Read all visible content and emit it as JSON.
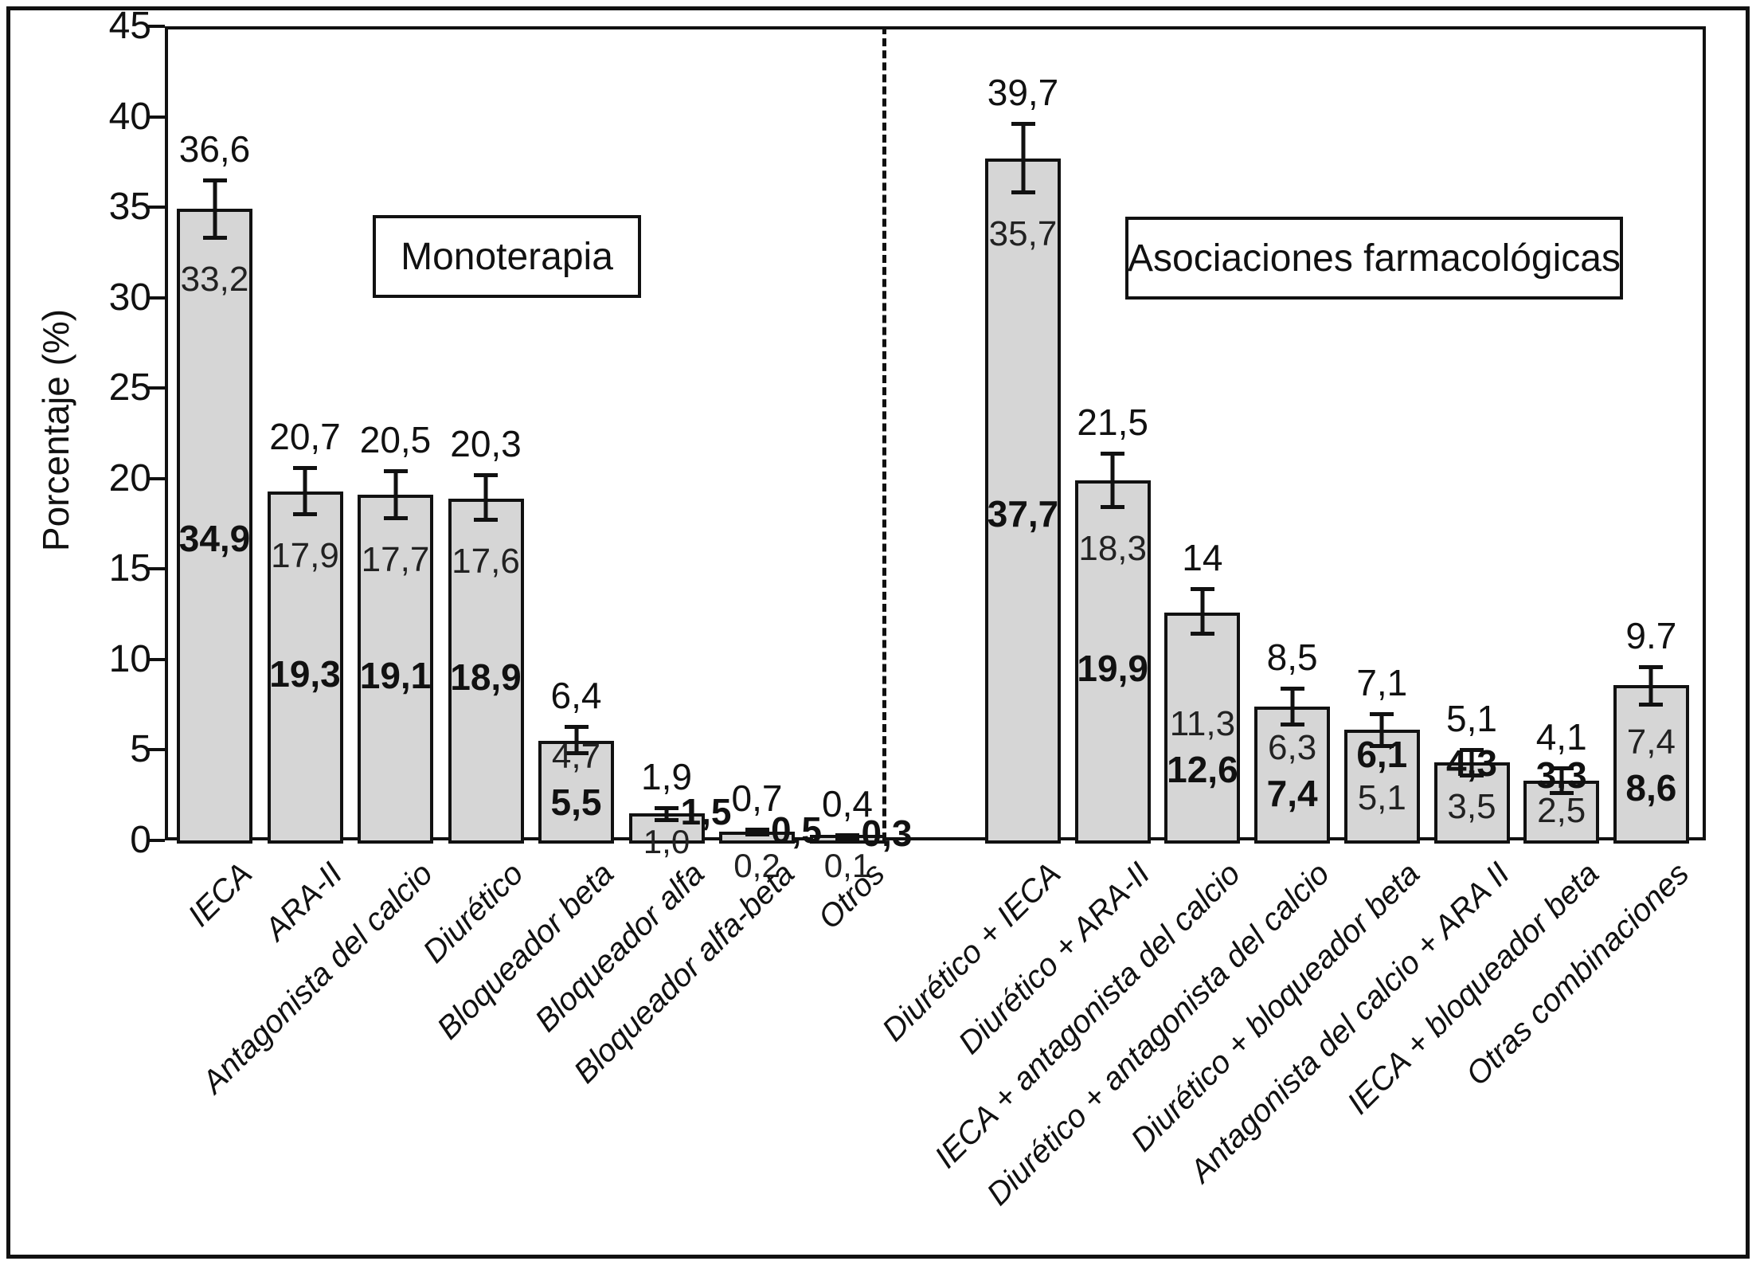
{
  "chart_data": {
    "type": "bar",
    "title": "",
    "ylabel": "Porcentaje (%)",
    "ylim": [
      0,
      45
    ],
    "yticks": [
      0,
      5,
      10,
      15,
      20,
      25,
      30,
      35,
      40,
      45
    ],
    "grid": false,
    "legend_position": "none",
    "error_bars": "whiskers with caps (confidence interval)",
    "label_note": "top number = upper CI limit, light number = lower CI limit, bold number = point estimate",
    "groups": [
      {
        "label": "Monoterapia",
        "bars": [
          {
            "category": "IECA",
            "value": 34.9,
            "ci_low": 33.2,
            "ci_high": 36.6,
            "labels": {
              "top": "36,6",
              "inside": [
                {
                  "text": "33,2",
                  "bold": false
                },
                {
                  "text": "34,9",
                  "bold": true
                }
              ],
              "beside": null,
              "below": null
            }
          },
          {
            "category": "ARA-II",
            "value": 19.3,
            "ci_low": 17.9,
            "ci_high": 20.7,
            "labels": {
              "top": "20,7",
              "inside": [
                {
                  "text": "17,9",
                  "bold": false
                },
                {
                  "text": "19,3",
                  "bold": true
                }
              ],
              "beside": null,
              "below": null
            }
          },
          {
            "category": "Antagonista del calcio",
            "value": 19.1,
            "ci_low": 17.7,
            "ci_high": 20.5,
            "labels": {
              "top": "20,5",
              "inside": [
                {
                  "text": "17,7",
                  "bold": false
                },
                {
                  "text": "19,1",
                  "bold": true
                }
              ],
              "beside": null,
              "below": null
            }
          },
          {
            "category": "Diurético",
            "value": 18.9,
            "ci_low": 17.6,
            "ci_high": 20.3,
            "labels": {
              "top": "20,3",
              "inside": [
                {
                  "text": "17,6",
                  "bold": false
                },
                {
                  "text": "18,9",
                  "bold": true
                }
              ],
              "beside": null,
              "below": null
            }
          },
          {
            "category": "Bloqueador beta",
            "value": 5.5,
            "ci_low": 4.7,
            "ci_high": 6.4,
            "labels": {
              "top": "6,4",
              "inside": [
                {
                  "text": "4,7",
                  "bold": false
                },
                {
                  "text": "5,5",
                  "bold": true
                }
              ],
              "beside": null,
              "below": null
            }
          },
          {
            "category": "Bloqueador alfa",
            "value": 1.5,
            "ci_low": 1.0,
            "ci_high": 1.9,
            "labels": {
              "top": "1,9",
              "inside": [],
              "beside": "1,5",
              "below": "1,0"
            }
          },
          {
            "category": "Bloqueador alfa-beta",
            "value": 0.5,
            "ci_low": 0.2,
            "ci_high": 0.7,
            "labels": {
              "top": "0,7",
              "inside": [],
              "beside": "0,5",
              "below": "0,2"
            }
          },
          {
            "category": "Otros",
            "value": 0.3,
            "ci_low": 0.1,
            "ci_high": 0.4,
            "labels": {
              "top": "0,4",
              "inside": [],
              "beside": "0,3",
              "below": "0,1"
            }
          }
        ]
      },
      {
        "label": "Asociaciones farmacológicas",
        "bars": [
          {
            "category": "Diurético + IECA",
            "value": 37.7,
            "ci_low": 35.7,
            "ci_high": 39.7,
            "labels": {
              "top": "39,7",
              "inside": [
                {
                  "text": "35,7",
                  "bold": false
                },
                {
                  "text": "37,7",
                  "bold": true
                }
              ],
              "beside": null,
              "below": null
            }
          },
          {
            "category": "Diurético + ARA-II",
            "value": 19.9,
            "ci_low": 18.3,
            "ci_high": 21.5,
            "labels": {
              "top": "21,5",
              "inside": [
                {
                  "text": "18,3",
                  "bold": false
                },
                {
                  "text": "19,9",
                  "bold": true
                }
              ],
              "beside": null,
              "below": null
            }
          },
          {
            "category": "IECA + antagonista del calcio",
            "value": 12.6,
            "ci_low": 11.3,
            "ci_high": 14,
            "labels": {
              "top": "14",
              "inside": [
                {
                  "text": "11,3",
                  "bold": false
                },
                {
                  "text": "12,6",
                  "bold": true
                }
              ],
              "beside": null,
              "below": null
            }
          },
          {
            "category": "Diurético + antagonista del calcio",
            "value": 7.4,
            "ci_low": 6.3,
            "ci_high": 8.5,
            "labels": {
              "top": "8,5",
              "inside": [
                {
                  "text": "6,3",
                  "bold": false
                },
                {
                  "text": "7,4",
                  "bold": true
                }
              ],
              "beside": null,
              "below": null
            }
          },
          {
            "category": "Diurético + bloqueador beta",
            "value": 6.1,
            "ci_low": 5.1,
            "ci_high": 7.1,
            "labels": {
              "top": "7,1",
              "inside": [
                {
                  "text": "6,1",
                  "bold": true
                },
                {
                  "text": "5,1",
                  "bold": false
                }
              ],
              "beside": null,
              "below": null
            }
          },
          {
            "category": "Antagonista del calcio + ARA II",
            "value": 4.3,
            "ci_low": 3.5,
            "ci_high": 5.1,
            "labels": {
              "top": "5,1",
              "inside": [
                {
                  "text": "4,3",
                  "bold": true
                },
                {
                  "text": "3,5",
                  "bold": false
                }
              ],
              "beside": null,
              "below": null
            }
          },
          {
            "category": "IECA + bloqueador beta",
            "value": 3.3,
            "ci_low": 2.5,
            "ci_high": 4.1,
            "labels": {
              "top": "4,1",
              "inside": [
                {
                  "text": "3,3",
                  "bold": true
                },
                {
                  "text": "2,5",
                  "bold": false
                }
              ],
              "beside": null,
              "below": null
            }
          },
          {
            "category": "Otras combinaciones",
            "value": 8.6,
            "ci_low": 7.4,
            "ci_high": 9.7,
            "labels": {
              "top": "9.7",
              "inside": [
                {
                  "text": "7,4",
                  "bold": false
                },
                {
                  "text": "8,6",
                  "bold": true
                }
              ],
              "beside": null,
              "below": null
            }
          }
        ]
      }
    ]
  }
}
